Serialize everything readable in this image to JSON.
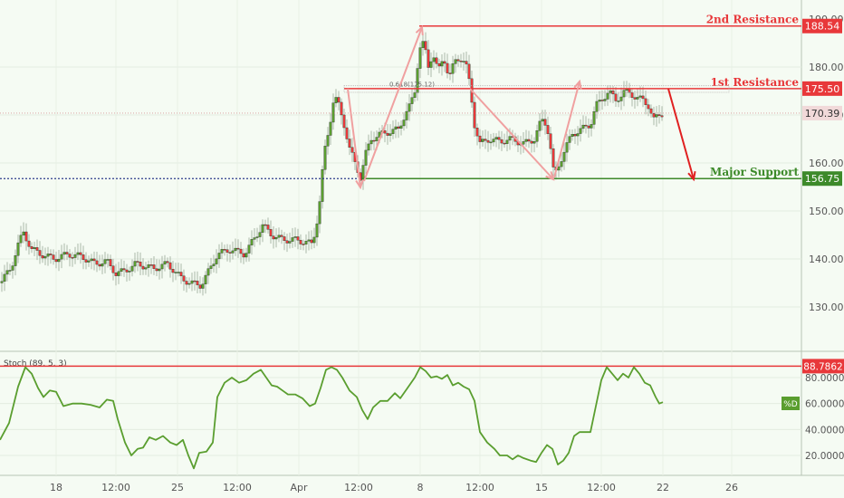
{
  "chart_data": [
    {
      "type": "candlestick",
      "title": "",
      "ylim": [
        120,
        190
      ],
      "y_ticks": [
        "130.00",
        "140.00",
        "150.00",
        "160.00",
        "170.00",
        "180.00"
      ],
      "x_ticks": [
        "18",
        "12:00",
        "25",
        "12:00",
        "Apr",
        "12:00",
        "8",
        "12:00",
        "15",
        "12:00",
        "22",
        "26"
      ],
      "price_points": [
        [
          0,
          135
        ],
        [
          12,
          138
        ],
        [
          20,
          143
        ],
        [
          26,
          145.5
        ],
        [
          35,
          142
        ],
        [
          45,
          141
        ],
        [
          60,
          140
        ],
        [
          75,
          141
        ],
        [
          90,
          140.5
        ],
        [
          105,
          139
        ],
        [
          118,
          139.5
        ],
        [
          128,
          137
        ],
        [
          138,
          137.5
        ],
        [
          150,
          139
        ],
        [
          160,
          138.5
        ],
        [
          170,
          138
        ],
        [
          185,
          139
        ],
        [
          200,
          136
        ],
        [
          210,
          135
        ],
        [
          222,
          134.5
        ],
        [
          232,
          138
        ],
        [
          240,
          141
        ],
        [
          255,
          142
        ],
        [
          270,
          141
        ],
        [
          280,
          144
        ],
        [
          290,
          147
        ],
        [
          300,
          145
        ],
        [
          312,
          144
        ],
        [
          325,
          144
        ],
        [
          338,
          143.5
        ],
        [
          345,
          143
        ],
        [
          352,
          150
        ],
        [
          358,
          162
        ],
        [
          364,
          168
        ],
        [
          369,
          174
        ],
        [
          374,
          172
        ],
        [
          380,
          168
        ],
        [
          386,
          163
        ],
        [
          392,
          160
        ],
        [
          398,
          157
        ],
        [
          404,
          162
        ],
        [
          410,
          165
        ],
        [
          420,
          166
        ],
        [
          430,
          166.5
        ],
        [
          440,
          167
        ],
        [
          447,
          170
        ],
        [
          453,
          172
        ],
        [
          458,
          175
        ],
        [
          463,
          184
        ],
        [
          468,
          185
        ],
        [
          473,
          180
        ],
        [
          478,
          183
        ],
        [
          484,
          179
        ],
        [
          490,
          182
        ],
        [
          496,
          178
        ],
        [
          502,
          181
        ],
        [
          508,
          182
        ],
        [
          514,
          181
        ],
        [
          519,
          176
        ],
        [
          524,
          168
        ],
        [
          530,
          164
        ],
        [
          540,
          165
        ],
        [
          552,
          164.5
        ],
        [
          565,
          165
        ],
        [
          578,
          164
        ],
        [
          590,
          165
        ],
        [
          598,
          169
        ],
        [
          604,
          168
        ],
        [
          608,
          163
        ],
        [
          612,
          157
        ],
        [
          618,
          160
        ],
        [
          624,
          163
        ],
        [
          632,
          166
        ],
        [
          642,
          167
        ],
        [
          652,
          168
        ],
        [
          658,
          172
        ],
        [
          664,
          173
        ],
        [
          672,
          175
        ],
        [
          680,
          173
        ],
        [
          690,
          175
        ],
        [
          700,
          174
        ],
        [
          710,
          173
        ],
        [
          716,
          172
        ],
        [
          722,
          169
        ],
        [
          728,
          170
        ],
        [
          732,
          170.39
        ]
      ],
      "annotations": [
        {
          "label": "2nd Resistance",
          "value": "188.54",
          "color": "#e8383a"
        },
        {
          "label": "1st Resistance",
          "value": "175.50",
          "color": "#e8383a"
        },
        {
          "label": "Major Support",
          "value": "156.75",
          "color": "#3d8a2a"
        }
      ],
      "last_price": "170.39",
      "fib_label": "0.618(175.12)"
    },
    {
      "type": "line",
      "title": "Stoch (89, 5, 3)",
      "ylim": [
        0,
        100
      ],
      "y_ticks": [
        "20.0000",
        "40.0000",
        "60.0000",
        "80.0000"
      ],
      "level": "88.7862",
      "series_tag": "%D",
      "points": [
        [
          0,
          32
        ],
        [
          10,
          45
        ],
        [
          20,
          73
        ],
        [
          28,
          88
        ],
        [
          35,
          83
        ],
        [
          42,
          72
        ],
        [
          48,
          65
        ],
        [
          55,
          70
        ],
        [
          62,
          69
        ],
        [
          70,
          58
        ],
        [
          80,
          60
        ],
        [
          90,
          60
        ],
        [
          100,
          59
        ],
        [
          110,
          57
        ],
        [
          118,
          63
        ],
        [
          125,
          62
        ],
        [
          130,
          48
        ],
        [
          138,
          30
        ],
        [
          145,
          20
        ],
        [
          152,
          25
        ],
        [
          158,
          26
        ],
        [
          165,
          34
        ],
        [
          172,
          32
        ],
        [
          180,
          35
        ],
        [
          188,
          30
        ],
        [
          195,
          28
        ],
        [
          202,
          32
        ],
        [
          208,
          20
        ],
        [
          214,
          10
        ],
        [
          220,
          22
        ],
        [
          228,
          23
        ],
        [
          235,
          30
        ],
        [
          240,
          65
        ],
        [
          248,
          76
        ],
        [
          256,
          80
        ],
        [
          264,
          76
        ],
        [
          272,
          78
        ],
        [
          280,
          83
        ],
        [
          288,
          86
        ],
        [
          294,
          80
        ],
        [
          300,
          74
        ],
        [
          306,
          73
        ],
        [
          312,
          70
        ],
        [
          318,
          67
        ],
        [
          326,
          67
        ],
        [
          334,
          64
        ],
        [
          342,
          58
        ],
        [
          348,
          60
        ],
        [
          354,
          72
        ],
        [
          360,
          86
        ],
        [
          366,
          88
        ],
        [
          372,
          86
        ],
        [
          378,
          80
        ],
        [
          386,
          70
        ],
        [
          394,
          65
        ],
        [
          400,
          55
        ],
        [
          406,
          48
        ],
        [
          412,
          57
        ],
        [
          420,
          62
        ],
        [
          428,
          62
        ],
        [
          436,
          68
        ],
        [
          442,
          64
        ],
        [
          450,
          72
        ],
        [
          458,
          80
        ],
        [
          464,
          88
        ],
        [
          470,
          85
        ],
        [
          476,
          80
        ],
        [
          482,
          81
        ],
        [
          488,
          79
        ],
        [
          494,
          82
        ],
        [
          500,
          74
        ],
        [
          506,
          76
        ],
        [
          512,
          73
        ],
        [
          518,
          71
        ],
        [
          524,
          62
        ],
        [
          530,
          38
        ],
        [
          538,
          30
        ],
        [
          546,
          25
        ],
        [
          552,
          20
        ],
        [
          560,
          20
        ],
        [
          566,
          17
        ],
        [
          572,
          20
        ],
        [
          578,
          18
        ],
        [
          586,
          16
        ],
        [
          592,
          15
        ],
        [
          598,
          22
        ],
        [
          604,
          28
        ],
        [
          610,
          25
        ],
        [
          616,
          13
        ],
        [
          622,
          16
        ],
        [
          628,
          22
        ],
        [
          634,
          35
        ],
        [
          640,
          38
        ],
        [
          646,
          38
        ],
        [
          652,
          38
        ],
        [
          658,
          58
        ],
        [
          664,
          78
        ],
        [
          670,
          88
        ],
        [
          676,
          83
        ],
        [
          682,
          78
        ],
        [
          688,
          83
        ],
        [
          694,
          80
        ],
        [
          700,
          88
        ],
        [
          706,
          83
        ],
        [
          712,
          76
        ],
        [
          718,
          74
        ],
        [
          724,
          65
        ],
        [
          728,
          60
        ],
        [
          732,
          61
        ]
      ]
    }
  ]
}
